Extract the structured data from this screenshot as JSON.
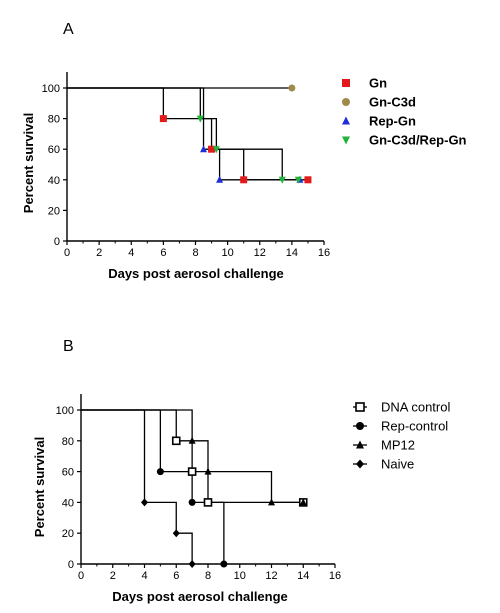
{
  "chart_data": [
    {
      "panel": "A",
      "type": "line",
      "step": true,
      "xlabel": "Days post aerosol challenge",
      "ylabel": "Percent survival",
      "xlim": [
        0,
        16
      ],
      "ylim": [
        0,
        100
      ],
      "xticks": [
        "0",
        "2",
        "4",
        "6",
        "8",
        "10",
        "12",
        "14",
        "16"
      ],
      "yticks": [
        "0",
        "20",
        "40",
        "60",
        "80",
        "100"
      ],
      "legend_position": "right",
      "legend_style": "bold",
      "series": [
        {
          "name": "Gn",
          "color": "#e31a1c",
          "marker": "square-filled",
          "x": [
            0,
            6,
            9,
            11,
            15
          ],
          "y": [
            100,
            80,
            60,
            40,
            40
          ],
          "marks": [
            [
              6,
              80
            ],
            [
              9,
              60
            ],
            [
              11,
              40
            ],
            [
              15,
              40
            ]
          ]
        },
        {
          "name": "Gn-C3d",
          "color": "#a08a4a",
          "marker": "circle-filled",
          "x": [
            0,
            14
          ],
          "y": [
            100,
            100
          ],
          "marks": [
            [
              14,
              100
            ]
          ]
        },
        {
          "name": "Rep-Gn",
          "color": "#1f2ed6",
          "marker": "triangle-up",
          "x": [
            0,
            8.5,
            9.5,
            14.5
          ],
          "y": [
            100,
            60,
            40,
            40
          ],
          "marks": [
            [
              8.5,
              60
            ],
            [
              9.5,
              40
            ],
            [
              14.5,
              40
            ]
          ]
        },
        {
          "name": "Gn-C3d/Rep-Gn",
          "color": "#1eb53a",
          "marker": "triangle-down",
          "x": [
            0,
            8.3,
            9.3,
            13.4,
            14.4
          ],
          "y": [
            100,
            80,
            60,
            40,
            40
          ],
          "marks": [
            [
              8.3,
              80
            ],
            [
              9.3,
              60
            ],
            [
              13.4,
              40
            ],
            [
              14.4,
              40
            ]
          ]
        }
      ]
    },
    {
      "panel": "B",
      "type": "line",
      "step": true,
      "xlabel": "Days post aerosol challenge",
      "ylabel": "Percent survival",
      "xlim": [
        0,
        16
      ],
      "ylim": [
        0,
        100
      ],
      "xticks": [
        "0",
        "2",
        "4",
        "6",
        "8",
        "10",
        "12",
        "14",
        "16"
      ],
      "yticks": [
        "0",
        "20",
        "40",
        "60",
        "80",
        "100"
      ],
      "legend_position": "right",
      "legend_style": "plain",
      "series": [
        {
          "name": "DNA control",
          "color": "#000000",
          "marker": "square-open",
          "x": [
            0,
            6,
            7,
            8,
            14
          ],
          "y": [
            100,
            80,
            60,
            40,
            40
          ],
          "marks": [
            [
              6,
              80
            ],
            [
              7,
              60
            ],
            [
              8,
              40
            ],
            [
              14,
              40
            ]
          ]
        },
        {
          "name": "Rep-control",
          "color": "#000000",
          "marker": "circle-filled",
          "x": [
            0,
            5,
            7,
            9
          ],
          "y": [
            100,
            60,
            40,
            0
          ],
          "marks": [
            [
              5,
              60
            ],
            [
              7,
              40
            ],
            [
              9,
              0
            ]
          ]
        },
        {
          "name": "MP12",
          "color": "#000000",
          "marker": "triangle-up",
          "x": [
            0,
            7,
            8,
            12,
            14
          ],
          "y": [
            100,
            80,
            60,
            40,
            40
          ],
          "marks": [
            [
              7,
              80
            ],
            [
              8,
              60
            ],
            [
              12,
              40
            ],
            [
              14,
              40
            ]
          ]
        },
        {
          "name": "Naive",
          "color": "#000000",
          "marker": "diamond-filled",
          "x": [
            0,
            4,
            6,
            7
          ],
          "y": [
            100,
            40,
            20,
            0
          ],
          "marks": [
            [
              4,
              40
            ],
            [
              6,
              20
            ],
            [
              7,
              0
            ]
          ]
        }
      ]
    }
  ]
}
